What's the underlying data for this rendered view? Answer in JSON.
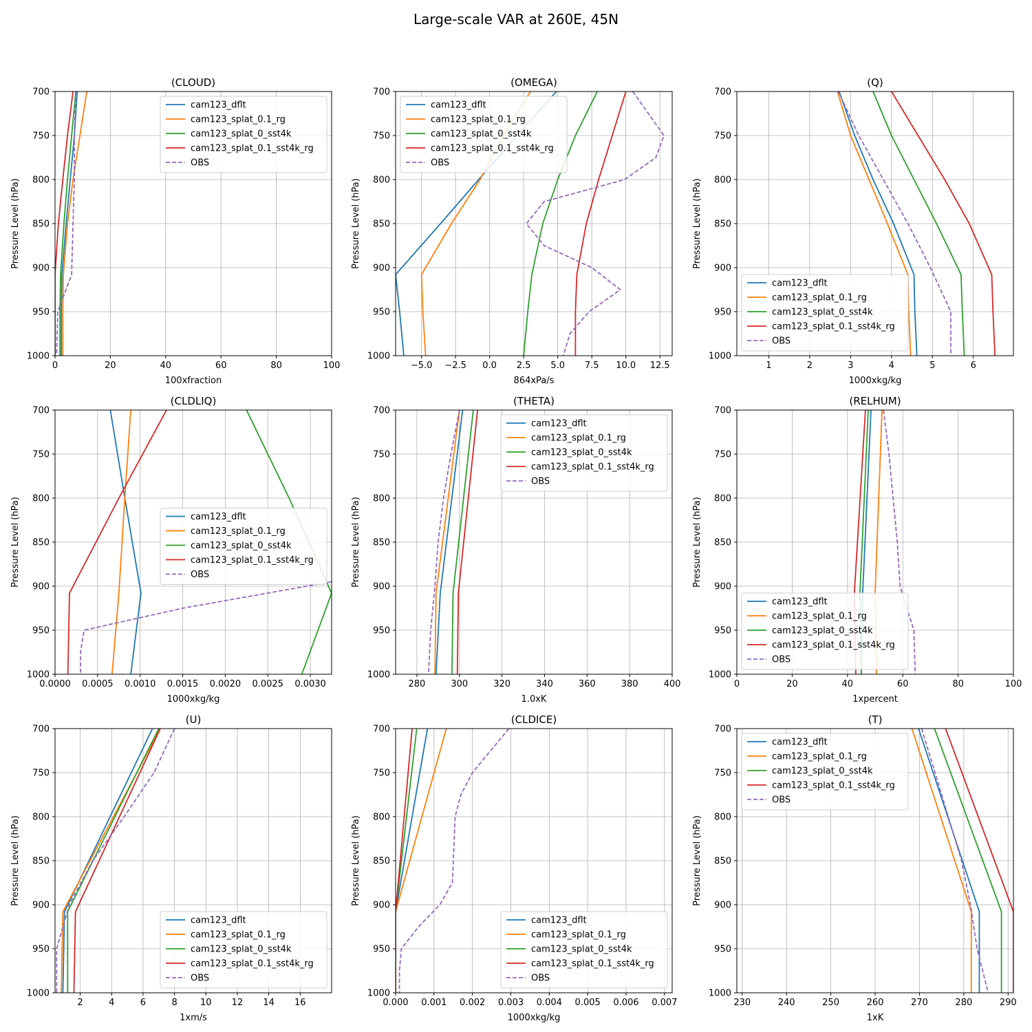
{
  "figure": {
    "suptitle": "Large-scale VAR at 260E, 45N",
    "ylabel": "Pressure Level (hPa)",
    "colors": {
      "cam123_dflt": "#1f77b4",
      "cam123_splat_0.1_rg": "#ff7f0e",
      "cam123_splat_0_sst4k": "#2ca02c",
      "cam123_splat_0.1_sst4k_rg": "#d62728",
      "OBS": "#9467bd"
    }
  },
  "chart_data": [
    {
      "type": "line",
      "title": "(CLOUD)",
      "xlabel": "100xfraction",
      "ylabel": "Pressure Level (hPa)",
      "xlim": [
        0,
        100
      ],
      "ylim": [
        1000,
        700
      ],
      "xticks": [
        0,
        20,
        40,
        60,
        80,
        100
      ],
      "yticks": [
        700,
        750,
        800,
        850,
        900,
        950,
        1000
      ],
      "grid": true,
      "legend": "upper right",
      "y": [
        700,
        750,
        800,
        850,
        908,
        950,
        1000
      ],
      "series": [
        {
          "name": "cam123_dflt",
          "x": [
            8.0,
            7.0,
            5.5,
            4.0,
            2.5,
            2.3,
            2.3
          ]
        },
        {
          "name": "cam123_splat_0.1_rg",
          "x": [
            11.5,
            9.0,
            6.5,
            4.5,
            3.0,
            2.8,
            2.8
          ]
        },
        {
          "name": "cam123_splat_0_sst4k",
          "x": [
            7.5,
            6.0,
            4.5,
            3.2,
            2.0,
            1.8,
            1.8
          ]
        },
        {
          "name": "cam123_splat_0.1_sst4k_rg",
          "x": [
            6.5,
            4.5,
            2.8,
            1.2,
            0.0,
            0.0,
            0.0
          ]
        },
        {
          "name": "OBS",
          "x": [
            7.5,
            7.0,
            7.0,
            6.5,
            6.0,
            1.0,
            0.5
          ],
          "dashed": true
        }
      ]
    },
    {
      "type": "line",
      "title": "(OMEGA)",
      "xlabel": "864xPa/s",
      "ylabel": "Pressure Level (hPa)",
      "xlim": [
        -6.9,
        13.4
      ],
      "ylim": [
        1000,
        700
      ],
      "xticks": [
        -5.0,
        -2.5,
        0.0,
        2.5,
        5.0,
        7.5,
        10.0,
        12.5
      ],
      "yticks": [
        700,
        750,
        800,
        850,
        900,
        950,
        1000
      ],
      "grid": true,
      "legend": "upper left",
      "series": [
        {
          "name": "cam123_dflt",
          "y": [
            700,
            750,
            800,
            850,
            908,
            950,
            1000
          ],
          "x": [
            4.9,
            2.0,
            -0.8,
            -3.6,
            -6.9,
            -6.6,
            -6.3
          ]
        },
        {
          "name": "cam123_splat_0.1_rg",
          "y": [
            700,
            750,
            800,
            850,
            908,
            950,
            1000
          ],
          "x": [
            3.0,
            1.0,
            -0.7,
            -2.8,
            -5.0,
            -4.9,
            -4.7
          ]
        },
        {
          "name": "cam123_splat_0_sst4k",
          "y": [
            700,
            750,
            800,
            850,
            908,
            950,
            1000
          ],
          "x": [
            7.9,
            6.3,
            5.0,
            3.9,
            3.1,
            2.8,
            2.5
          ]
        },
        {
          "name": "cam123_splat_0.1_sst4k_rg",
          "y": [
            700,
            750,
            800,
            850,
            908,
            950,
            1000
          ],
          "x": [
            10.0,
            9.0,
            8.0,
            7.1,
            6.4,
            6.3,
            6.3
          ]
        },
        {
          "name": "OBS",
          "y": [
            700,
            750,
            775,
            800,
            825,
            850,
            875,
            900,
            925,
            950,
            975,
            1000
          ],
          "x": [
            10.5,
            12.8,
            12.2,
            9.9,
            4.0,
            2.7,
            4.0,
            7.5,
            9.6,
            7.3,
            5.9,
            5.4
          ],
          "dashed": true
        }
      ]
    },
    {
      "type": "line",
      "title": "(Q)",
      "xlabel": "1000xkg/kg",
      "ylabel": "Pressure Level (hPa)",
      "xlim": [
        0.22,
        6.98
      ],
      "ylim": [
        1000,
        700
      ],
      "xticks": [
        1,
        2,
        3,
        4,
        5,
        6
      ],
      "yticks": [
        700,
        750,
        800,
        850,
        900,
        950,
        1000
      ],
      "grid": true,
      "legend": "lower left",
      "series": [
        {
          "name": "cam123_dflt",
          "y": [
            700,
            750,
            800,
            850,
            908,
            950,
            1000
          ],
          "x": [
            2.72,
            3.1,
            3.55,
            4.05,
            4.55,
            4.57,
            4.62
          ]
        },
        {
          "name": "cam123_splat_0.1_rg",
          "y": [
            700,
            750,
            800,
            850,
            908,
            950,
            1000
          ],
          "x": [
            2.68,
            3.0,
            3.45,
            3.9,
            4.4,
            4.42,
            4.47
          ]
        },
        {
          "name": "cam123_splat_0_sst4k",
          "y": [
            700,
            750,
            800,
            850,
            908,
            950,
            1000
          ],
          "x": [
            3.55,
            4.0,
            4.55,
            5.1,
            5.7,
            5.73,
            5.78
          ]
        },
        {
          "name": "cam123_splat_0.1_sst4k_rg",
          "y": [
            700,
            750,
            800,
            850,
            908,
            950,
            1000
          ],
          "x": [
            4.0,
            4.65,
            5.3,
            5.9,
            6.45,
            6.48,
            6.53
          ]
        },
        {
          "name": "OBS",
          "y": [
            700,
            750,
            800,
            850,
            900,
            950,
            1000
          ],
          "x": [
            2.7,
            3.2,
            3.8,
            4.4,
            4.95,
            5.45,
            5.45
          ],
          "dashed": true
        }
      ]
    },
    {
      "type": "line",
      "title": "(CLDLIQ)",
      "xlabel": "1000xkg/kg",
      "ylabel": "Pressure Level (hPa)",
      "xlim": [
        0.0,
        0.00325
      ],
      "ylim": [
        1000,
        700
      ],
      "xticks": [
        0.0,
        0.0005,
        0.001,
        0.0015,
        0.002,
        0.0025,
        0.003
      ],
      "xticklabels": [
        "0.0000",
        "0.0005",
        "0.0010",
        "0.0015",
        "0.0020",
        "0.0025",
        "0.0030"
      ],
      "yticks": [
        700,
        750,
        800,
        850,
        900,
        950,
        1000
      ],
      "grid": true,
      "legend": "center right",
      "series": [
        {
          "name": "cam123_dflt",
          "y": [
            700,
            800,
            908,
            1000
          ],
          "x": [
            0.00065,
            0.00082,
            0.00101,
            0.00089
          ]
        },
        {
          "name": "cam123_splat_0.1_rg",
          "y": [
            700,
            800,
            908,
            1000
          ],
          "x": [
            0.00089,
            0.00082,
            0.00075,
            0.00067
          ]
        },
        {
          "name": "cam123_splat_0_sst4k",
          "y": [
            700,
            800,
            908,
            1000
          ],
          "x": [
            0.00225,
            0.00275,
            0.00325,
            0.0029
          ]
        },
        {
          "name": "cam123_splat_0.1_sst4k_rg",
          "y": [
            700,
            800,
            908,
            1000
          ],
          "x": [
            0.00131,
            0.00075,
            0.00017,
            0.00015
          ]
        },
        {
          "name": "OBS",
          "y": [
            895,
            925,
            950,
            975,
            1000
          ],
          "x": [
            0.00325,
            0.0015,
            0.00034,
            0.0003,
            0.0003
          ],
          "dashed": true
        }
      ]
    },
    {
      "type": "line",
      "title": "(THETA)",
      "xlabel": "1.0xK",
      "ylabel": "Pressure Level (hPa)",
      "xlim": [
        270,
        400
      ],
      "ylim": [
        1000,
        700
      ],
      "xticks": [
        280,
        300,
        320,
        340,
        360,
        380,
        400
      ],
      "yticks": [
        700,
        750,
        800,
        850,
        900,
        950,
        1000
      ],
      "grid": true,
      "legend": "upper right",
      "series": [
        {
          "name": "cam123_dflt",
          "y": [
            700,
            908,
            1000
          ],
          "x": [
            301.5,
            291.0,
            289.0
          ]
        },
        {
          "name": "cam123_splat_0.1_rg",
          "y": [
            700,
            908,
            1000
          ],
          "x": [
            300.0,
            289.0,
            288.5
          ]
        },
        {
          "name": "cam123_splat_0_sst4k",
          "y": [
            700,
            908,
            1000
          ],
          "x": [
            306.5,
            297.0,
            296.5
          ]
        },
        {
          "name": "cam123_splat_0.1_sst4k_rg",
          "y": [
            700,
            908,
            1000
          ],
          "x": [
            308.5,
            299.5,
            299.0
          ]
        },
        {
          "name": "OBS",
          "y": [
            700,
            750,
            800,
            850,
            900,
            950,
            1000
          ],
          "x": [
            300.0,
            296.0,
            292.5,
            290.0,
            288.5,
            286.5,
            285.5
          ],
          "dashed": true
        }
      ]
    },
    {
      "type": "line",
      "title": "(RELHUM)",
      "xlabel": "1xpercent",
      "ylabel": "Pressure Level (hPa)",
      "xlim": [
        0,
        100
      ],
      "ylim": [
        1000,
        700
      ],
      "xticks": [
        0,
        20,
        40,
        60,
        80,
        100
      ],
      "yticks": [
        700,
        750,
        800,
        850,
        900,
        950,
        1000
      ],
      "grid": true,
      "legend": "lower left",
      "series": [
        {
          "name": "cam123_dflt",
          "y": [
            700,
            908,
            1000
          ],
          "x": [
            48.5,
            45.5,
            45.0
          ]
        },
        {
          "name": "cam123_splat_0.1_rg",
          "y": [
            700,
            908,
            1000
          ],
          "x": [
            52.5,
            50.0,
            50.5
          ]
        },
        {
          "name": "cam123_splat_0_sst4k",
          "y": [
            700,
            908,
            1000
          ],
          "x": [
            47.5,
            44.5,
            45.0
          ]
        },
        {
          "name": "cam123_splat_0.1_sst4k_rg",
          "y": [
            700,
            908,
            1000
          ],
          "x": [
            46.5,
            42.5,
            43.0
          ]
        },
        {
          "name": "OBS",
          "y": [
            700,
            750,
            800,
            850,
            900,
            950,
            1000
          ],
          "x": [
            53.0,
            55.0,
            56.5,
            58.0,
            59.0,
            64.0,
            64.5
          ],
          "dashed": true
        }
      ]
    },
    {
      "type": "line",
      "title": "(U)",
      "xlabel": "1xm/s",
      "ylabel": "Pressure Level (hPa)",
      "xlim": [
        0.4,
        18.0
      ],
      "ylim": [
        1000,
        700
      ],
      "xticks": [
        2,
        4,
        6,
        8,
        10,
        12,
        14,
        16
      ],
      "yticks": [
        700,
        750,
        800,
        850,
        900,
        950,
        1000
      ],
      "grid": true,
      "legend": "lower right",
      "series": [
        {
          "name": "cam123_dflt",
          "y": [
            700,
            908,
            1000
          ],
          "x": [
            6.6,
            1.0,
            0.9
          ]
        },
        {
          "name": "cam123_splat_0.1_rg",
          "y": [
            700,
            908,
            1000
          ],
          "x": [
            7.1,
            0.9,
            0.8
          ]
        },
        {
          "name": "cam123_splat_0_sst4k",
          "y": [
            700,
            908,
            1000
          ],
          "x": [
            7.0,
            1.2,
            1.2
          ]
        },
        {
          "name": "cam123_splat_0.1_sst4k_rg",
          "y": [
            700,
            908,
            1000
          ],
          "x": [
            7.1,
            1.7,
            1.6
          ]
        },
        {
          "name": "OBS",
          "y": [
            700,
            750,
            800,
            850,
            900,
            950,
            1000
          ],
          "x": [
            8.0,
            6.7,
            4.8,
            2.8,
            1.3,
            0.5,
            0.5
          ],
          "dashed": true
        }
      ]
    },
    {
      "type": "line",
      "title": "(CLDICE)",
      "xlabel": "1000xkg/kg",
      "ylabel": "Pressure Level (hPa)",
      "xlim": [
        0.0,
        0.0072
      ],
      "ylim": [
        1000,
        700
      ],
      "xticks": [
        0.0,
        0.001,
        0.002,
        0.003,
        0.004,
        0.005,
        0.006,
        0.007
      ],
      "xticklabels": [
        "0.000",
        "0.001",
        "0.002",
        "0.003",
        "0.004",
        "0.005",
        "0.006",
        "0.007"
      ],
      "yticks": [
        700,
        750,
        800,
        850,
        900,
        950,
        1000
      ],
      "grid": true,
      "legend": "lower right",
      "series": [
        {
          "name": "cam123_dflt",
          "y": [
            700,
            908,
            1000
          ],
          "x": [
            0.00083,
            0.0,
            0.0
          ]
        },
        {
          "name": "cam123_splat_0.1_rg",
          "y": [
            700,
            908,
            1000
          ],
          "x": [
            0.00132,
            0.0,
            0.0
          ]
        },
        {
          "name": "cam123_splat_0_sst4k",
          "y": [
            700,
            908,
            1000
          ],
          "x": [
            0.00055,
            0.0,
            0.0
          ]
        },
        {
          "name": "cam123_splat_0.1_sst4k_rg",
          "y": [
            700,
            908,
            1000
          ],
          "x": [
            0.00043,
            0.0,
            0.0
          ]
        },
        {
          "name": "OBS",
          "y": [
            700,
            750,
            775,
            800,
            875,
            900,
            925,
            950,
            975,
            1000
          ],
          "x": [
            0.00295,
            0.002,
            0.0017,
            0.00155,
            0.00148,
            0.00115,
            0.0006,
            0.00015,
            0.0001,
            0.0001
          ],
          "dashed": true
        }
      ]
    },
    {
      "type": "line",
      "title": "(T)",
      "xlabel": "1xK",
      "ylabel": "Pressure Level (hPa)",
      "xlim": [
        228.8,
        291.2
      ],
      "ylim": [
        1000,
        700
      ],
      "xticks": [
        230,
        240,
        250,
        260,
        270,
        280,
        290
      ],
      "yticks": [
        700,
        750,
        800,
        850,
        900,
        950,
        1000
      ],
      "grid": true,
      "legend": "upper left",
      "series": [
        {
          "name": "cam123_dflt",
          "y": [
            700,
            908,
            1000
          ],
          "x": [
            269.8,
            283.5,
            283.5
          ]
        },
        {
          "name": "cam123_splat_0.1_rg",
          "y": [
            700,
            908,
            1000
          ],
          "x": [
            268.3,
            281.7,
            281.7
          ]
        },
        {
          "name": "cam123_splat_0_sst4k",
          "y": [
            700,
            908,
            1000
          ],
          "x": [
            273.4,
            288.5,
            288.5
          ]
        },
        {
          "name": "cam123_splat_0.1_sst4k_rg",
          "y": [
            700,
            908,
            1000
          ],
          "x": [
            275.9,
            291.2,
            291.2
          ]
        },
        {
          "name": "OBS",
          "y": [
            700,
            750,
            800,
            850,
            900,
            950,
            1000
          ],
          "x": [
            270.5,
            273.5,
            276.5,
            279.5,
            281.5,
            283.0,
            285.5
          ],
          "dashed": true
        }
      ]
    }
  ]
}
